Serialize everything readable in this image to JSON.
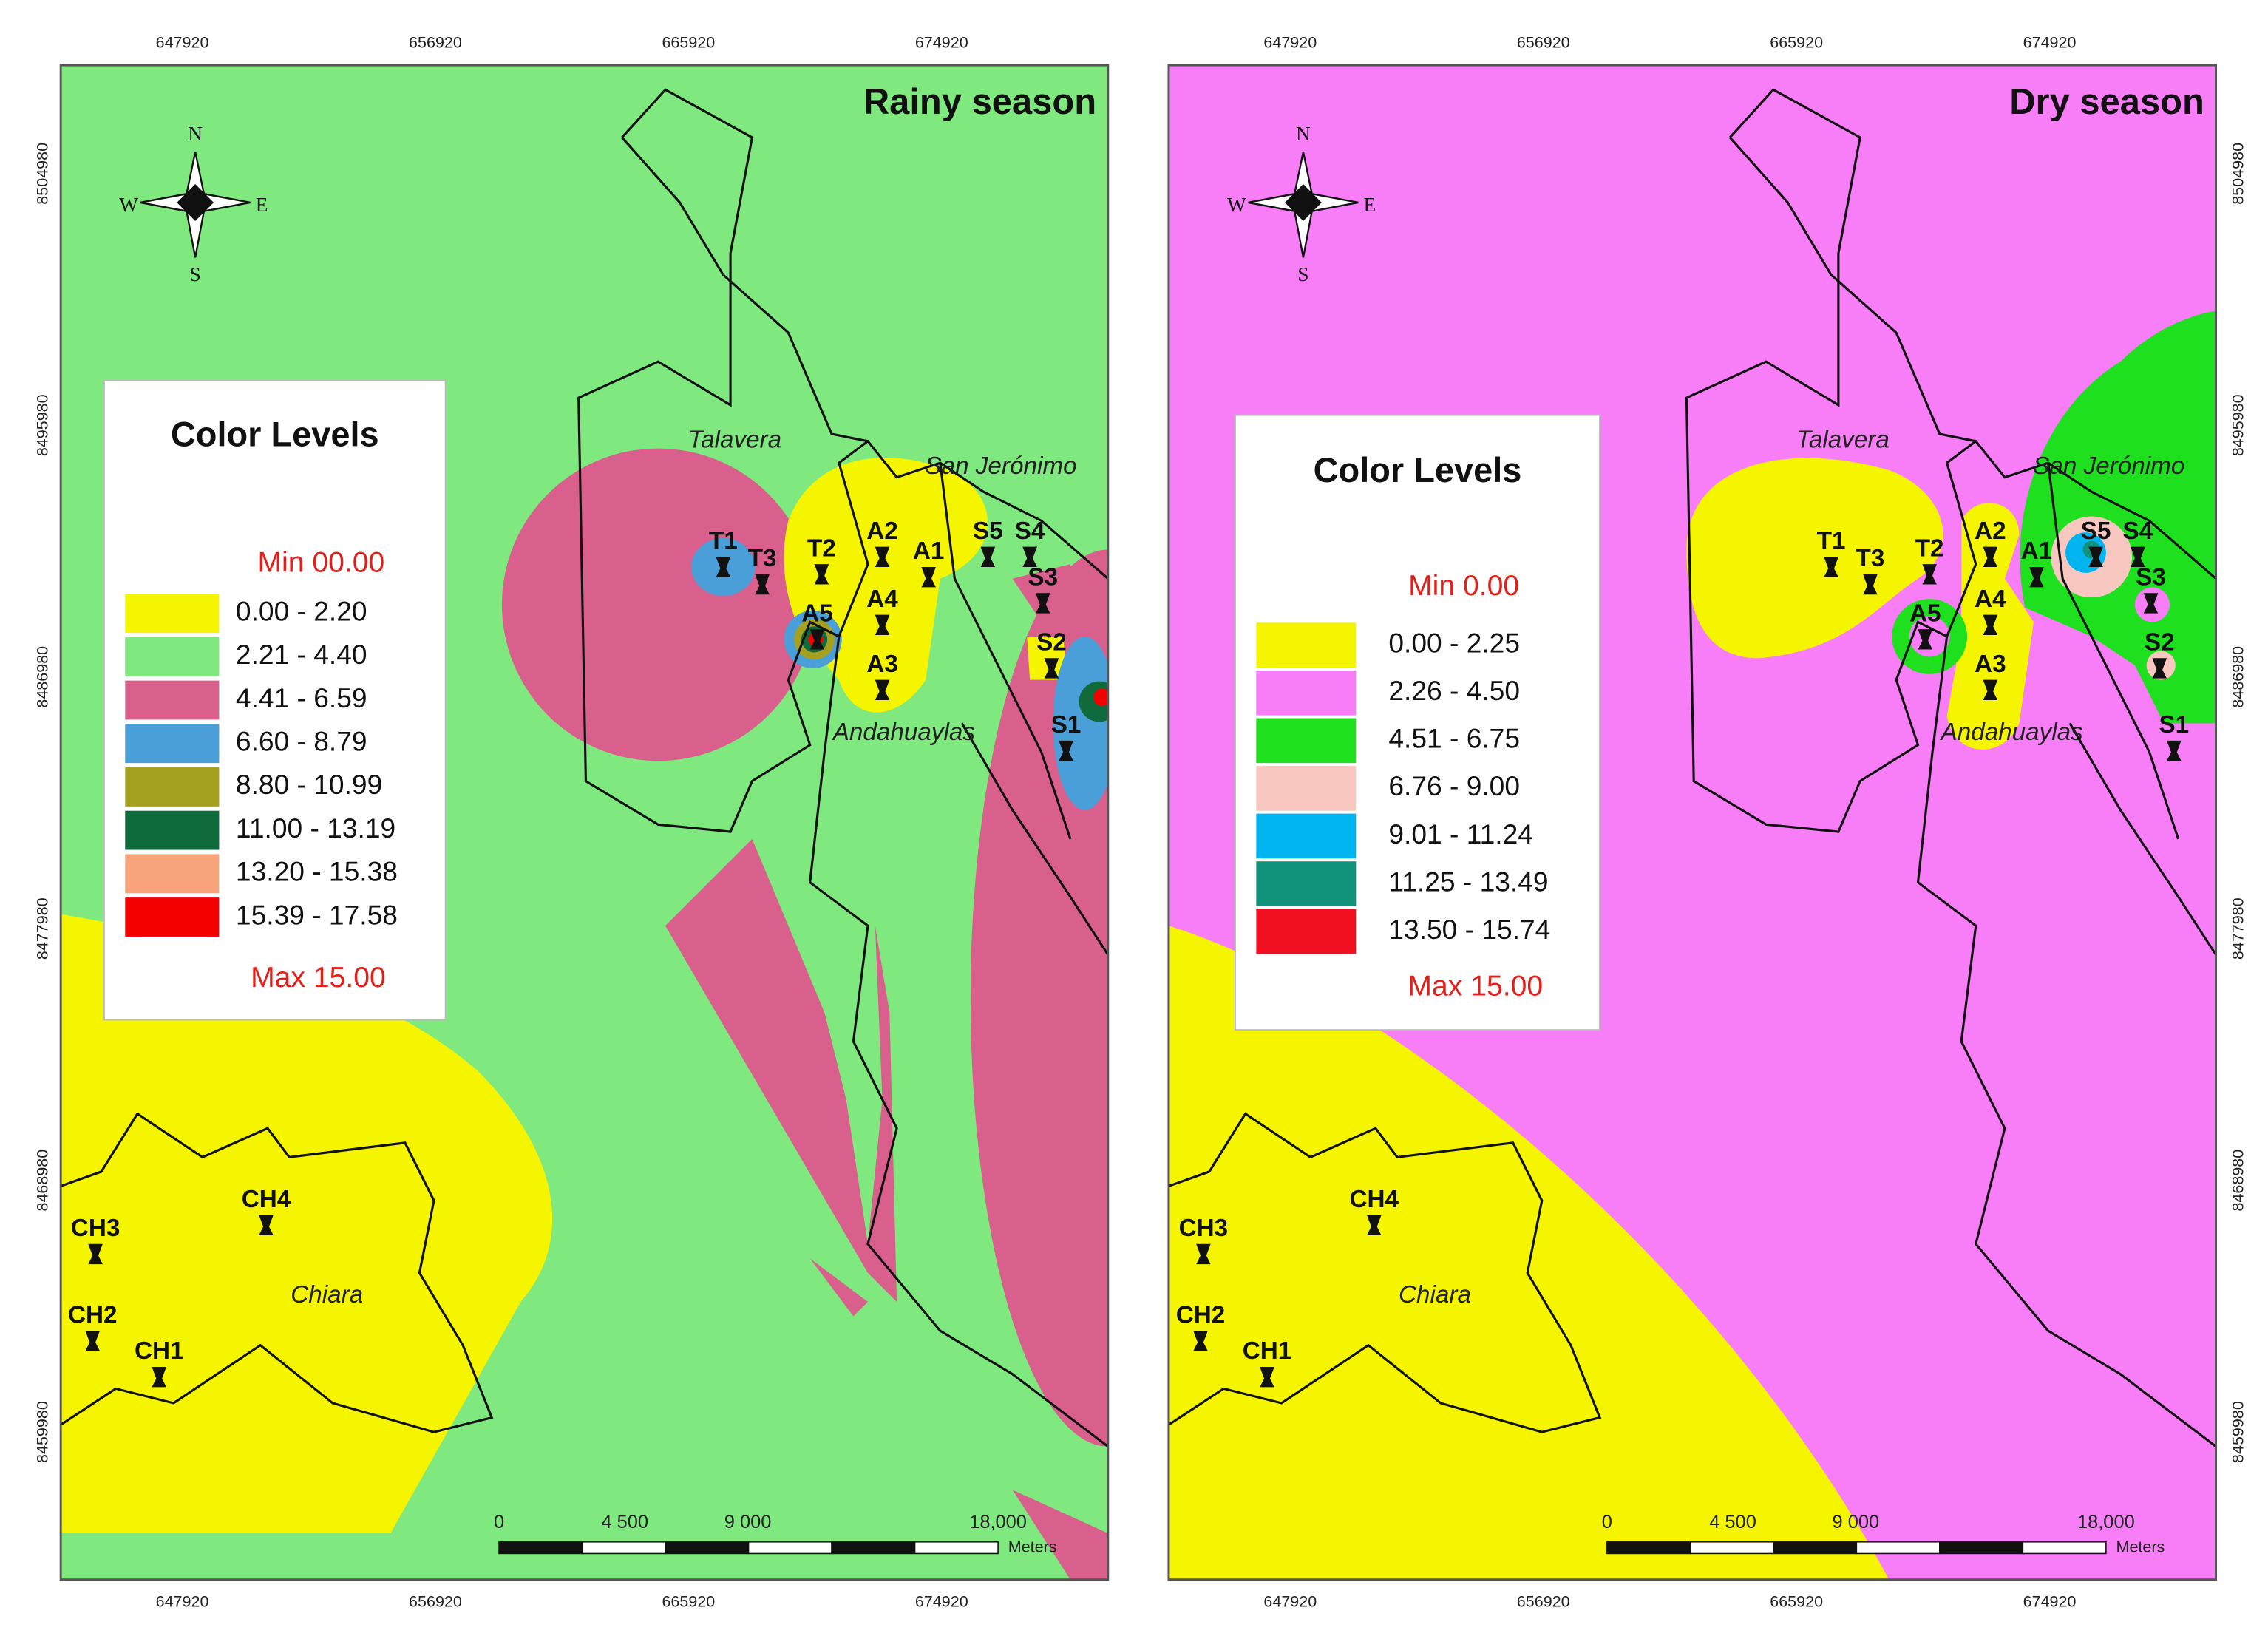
{
  "panels": [
    {
      "title": "Rainy season",
      "legend_title": "Color Levels",
      "min_label": "Min 00.00",
      "max_label": "Max 15.00",
      "background": "#7fe87f",
      "legend": [
        {
          "label": "0.00 - 2.20",
          "color": "#f5f500"
        },
        {
          "label": "2.21 - 4.40",
          "color": "#7fe87f"
        },
        {
          "label": "4.41 - 6.59",
          "color": "#d9608c"
        },
        {
          "label": "6.60 - 8.79",
          "color": "#4a9fd8"
        },
        {
          "label": "8.80 - 10.99",
          "color": "#a6a021"
        },
        {
          "label": "11.00 - 13.19",
          "color": "#0f6b3c"
        },
        {
          "label": "13.20 - 15.38",
          "color": "#f9a37a"
        },
        {
          "label": "15.39 - 17.58",
          "color": "#f40000"
        }
      ]
    },
    {
      "title": "Dry season",
      "legend_title": "Color Levels",
      "min_label": "Min  0.00",
      "max_label": "Max 15.00",
      "background": "#f77ef7",
      "legend": [
        {
          "label": "0.00 - 2.25",
          "color": "#f5f500"
        },
        {
          "label": "2.26 - 4.50",
          "color": "#f77ef7"
        },
        {
          "label": "4.51 - 6.75",
          "color": "#1ee01e"
        },
        {
          "label": "6.76 - 9.00",
          "color": "#f8c8c0"
        },
        {
          "label": "9.01 - 11.24",
          "color": "#00b5ef"
        },
        {
          "label": "11.25 - 13.49",
          "color": "#11927a"
        },
        {
          "label": "13.50 - 15.74",
          "color": "#f01020"
        }
      ]
    }
  ],
  "x_ticks": [
    "647920",
    "656920",
    "665920",
    "674920"
  ],
  "y_ticks": [
    "8504980",
    "8495980",
    "8486980",
    "8477980",
    "8468980",
    "8459980"
  ],
  "compass": [
    "N",
    "S",
    "W",
    "E"
  ],
  "places": [
    "Talavera",
    "San Jerónimo",
    "Andahuaylas",
    "Chiara"
  ],
  "stations": [
    "T1",
    "T3",
    "T2",
    "A2",
    "A1",
    "S5",
    "S4",
    "S3",
    "A5",
    "A4",
    "S2",
    "A3",
    "S1",
    "CH3",
    "CH4",
    "CH2",
    "CH1"
  ],
  "scale_labels": [
    "0",
    "4 500",
    "9 000",
    "18,000",
    "Meters"
  ]
}
